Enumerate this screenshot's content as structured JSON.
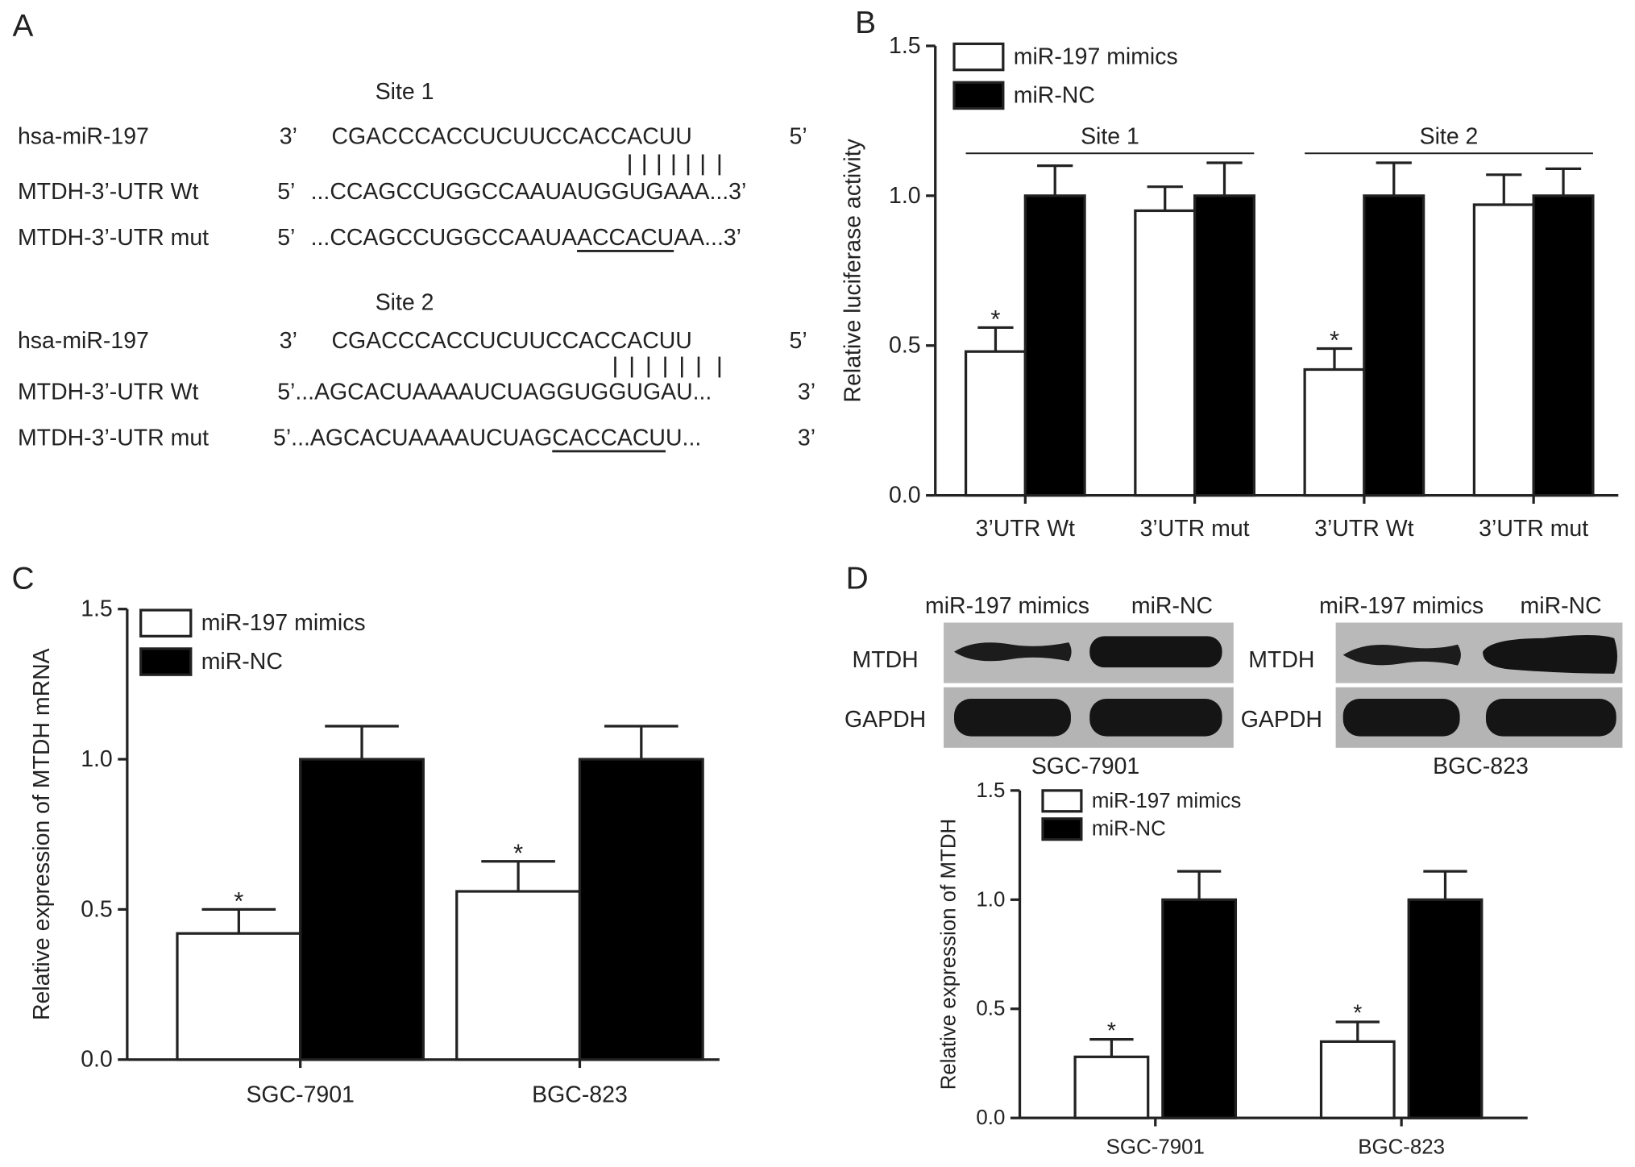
{
  "panel_labels": [
    "A",
    "B",
    "C",
    "D"
  ],
  "sequences": {
    "sites": [
      {
        "title": "Site 1",
        "rows": [
          {
            "name": "hsa-miR-197",
            "columns": [
              [
                "3’"
              ],
              [
                "CGACCCACCUCUUCCACCACUU"
              ],
              [
                "5’"
              ]
            ]
          },
          {
            "name": "MTDH-3’-UTR Wt",
            "columns": [
              [
                "5’"
              ],
              [
                "...CCAGCCUGGCCAAUAUGGUGAAA...3’"
              ]
            ]
          },
          {
            "name": "MTDH-3’-UTR mut",
            "columns": [
              [
                "5’"
              ],
              [
                "...CCAGCCUGGCCAAUA",
                "ACCACU",
                "AA...3’"
              ]
            ],
            "underlined_segment": 1
          }
        ]
      },
      {
        "title": "Site 2",
        "rows": [
          {
            "name": "hsa-miR-197",
            "columns": [
              [
                "3’"
              ],
              [
                "CGACCCACCUCUUCCACCACUU"
              ],
              [
                "5’"
              ]
            ]
          },
          {
            "name": "MTDH-3’-UTR Wt",
            "columns": [
              [
                "5’...AGCACUAAAAUCUAGGUGGUGAU..."
              ],
              [
                "3’"
              ]
            ]
          },
          {
            "name": "MTDH-3’-UTR mut",
            "columns": [
              [
                "5’...AGCACUAAAAUCUAG",
                "CACCACU",
                "U..."
              ],
              [
                "3’"
              ]
            ],
            "underlined_segment": 1
          }
        ]
      }
    ]
  },
  "blots": [
    {
      "cell_line": "SGC-7901",
      "lanes": [
        "miR-197 mimics",
        "miR-NC"
      ],
      "proteins": [
        "MTDH",
        "GAPDH"
      ]
    },
    {
      "cell_line": "BGC-823",
      "lanes": [
        "miR-197 mimics",
        "miR-NC"
      ],
      "proteins": [
        "MTDH",
        "GAPDH"
      ]
    }
  ],
  "chart_data": [
    {
      "type": "bar",
      "ylabel": "Relative luciferase activity",
      "categories": [
        "3’UTR Wt",
        "3’UTR mut",
        "3’UTR Wt",
        "3’UTR mut"
      ],
      "group_labels": [
        "Site 1",
        "Site 2"
      ],
      "series": [
        {
          "name": "miR-197 mimics",
          "color": "#ffffff",
          "values": [
            0.48,
            0.95,
            0.42,
            0.97
          ],
          "errors": [
            0.08,
            0.08,
            0.07,
            0.1
          ],
          "markers": [
            "*",
            null,
            "*",
            null
          ]
        },
        {
          "name": "miR-NC",
          "color": "#000000",
          "values": [
            1.0,
            1.0,
            1.0,
            1.0
          ],
          "errors": [
            0.1,
            0.11,
            0.11,
            0.09
          ]
        }
      ],
      "ylim": [
        0,
        1.5
      ],
      "yticks": [
        {
          "value": 0,
          "label": "0.0"
        },
        {
          "value": 0.5,
          "label": "0.5"
        },
        {
          "value": 1,
          "label": "1.0"
        },
        {
          "value": 1.5,
          "label": "1.5"
        }
      ]
    },
    {
      "type": "bar",
      "ylabel": "Relative expression of MTDH mRNA",
      "categories": [
        "SGC-7901",
        "BGC-823"
      ],
      "series": [
        {
          "name": "miR-197 mimics",
          "color": "#ffffff",
          "values": [
            0.42,
            0.56
          ],
          "errors": [
            0.08,
            0.1
          ],
          "markers": [
            "*",
            "*"
          ]
        },
        {
          "name": "miR-NC",
          "color": "#000000",
          "values": [
            1.0,
            1.0
          ],
          "errors": [
            0.11,
            0.11
          ]
        }
      ],
      "ylim": [
        0,
        1.5
      ],
      "yticks": [
        {
          "value": 0,
          "label": "0.0"
        },
        {
          "value": 0.5,
          "label": "0.5"
        },
        {
          "value": 1,
          "label": "1.0"
        },
        {
          "value": 1.5,
          "label": "1.5"
        }
      ]
    },
    {
      "type": "bar",
      "ylabel": "Relative expression of MTDH",
      "categories": [
        "SGC-7901",
        "BGC-823"
      ],
      "series": [
        {
          "name": "miR-197 mimics",
          "color": "#ffffff",
          "values": [
            0.28,
            0.35
          ],
          "errors": [
            0.08,
            0.09
          ],
          "markers": [
            "*",
            "*"
          ]
        },
        {
          "name": "miR-NC",
          "color": "#000000",
          "values": [
            1.0,
            1.0
          ],
          "errors": [
            0.13,
            0.13
          ]
        }
      ],
      "ylim": [
        0,
        1.5
      ],
      "yticks": [
        {
          "value": 0,
          "label": "0.0"
        },
        {
          "value": 0.5,
          "label": "0.5"
        },
        {
          "value": 1,
          "label": "1.0"
        },
        {
          "value": 1.5,
          "label": "1.5"
        }
      ]
    }
  ]
}
